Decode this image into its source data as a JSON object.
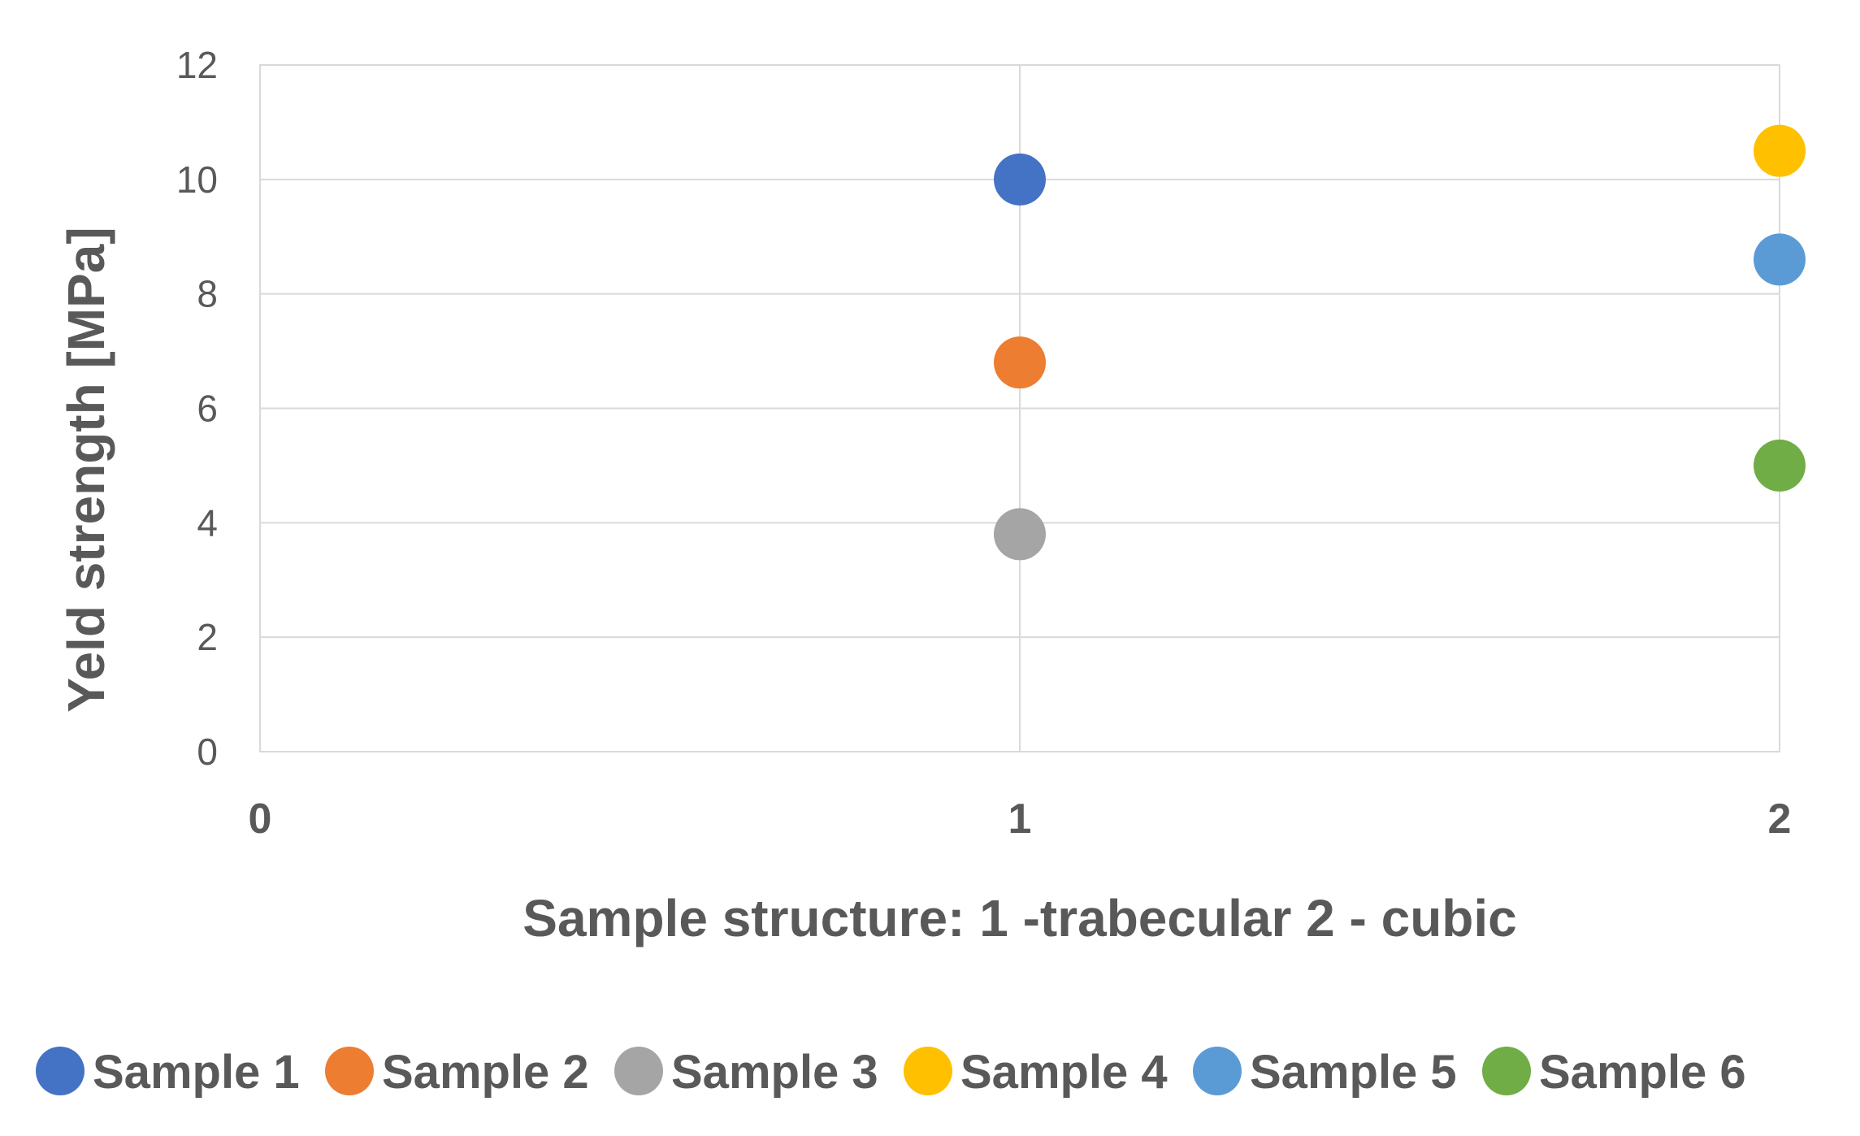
{
  "chart_data": {
    "type": "scatter",
    "title": "",
    "xlabel": "Sample structure: 1 -trabecular  2 - cubic",
    "ylabel": "Yeld strength  [MPa]",
    "xlim": [
      0,
      2
    ],
    "ylim": [
      0,
      12
    ],
    "x_ticks": [
      0,
      1,
      2
    ],
    "y_ticks": [
      0,
      2,
      4,
      6,
      8,
      10,
      12
    ],
    "grid": true,
    "legend_position": "bottom",
    "series": [
      {
        "name": "Sample 1",
        "color": "#4472C4",
        "x": [
          1
        ],
        "y": [
          10.0
        ]
      },
      {
        "name": "Sample 2",
        "color": "#ED7D31",
        "x": [
          1
        ],
        "y": [
          6.8
        ]
      },
      {
        "name": "Sample 3",
        "color": "#A5A5A5",
        "x": [
          1
        ],
        "y": [
          3.8
        ]
      },
      {
        "name": "Sample 4",
        "color": "#FFC000",
        "x": [
          2
        ],
        "y": [
          10.5
        ]
      },
      {
        "name": "Sample 5",
        "color": "#5B9BD5",
        "x": [
          2
        ],
        "y": [
          8.6
        ]
      },
      {
        "name": "Sample 6",
        "color": "#70AD47",
        "x": [
          2
        ],
        "y": [
          5.0
        ]
      }
    ]
  }
}
